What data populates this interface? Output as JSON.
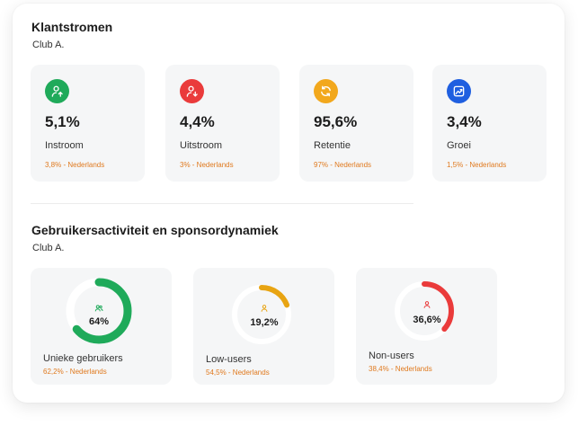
{
  "flows": {
    "title": "Klantstromen",
    "subtitle": "Club A.",
    "cards": [
      {
        "icon": "user-arrow-up-icon",
        "color": "#1faa5a",
        "value": "5,1%",
        "label": "Instroom",
        "benchmark": "3,8% - Nederlands"
      },
      {
        "icon": "user-arrow-down-icon",
        "color": "#ea3b3b",
        "value": "4,4%",
        "label": "Uitstroom",
        "benchmark": "3% - Nederlands"
      },
      {
        "icon": "refresh-icon",
        "color": "#f2a81d",
        "value": "95,6%",
        "label": "Retentie",
        "benchmark": "97% - Nederlands"
      },
      {
        "icon": "growth-chart-icon",
        "color": "#1f5fe0",
        "value": "3,4%",
        "label": "Groei",
        "benchmark": "1,5% - Nederlands"
      }
    ]
  },
  "activity": {
    "title": "Gebruikersactiviteit en sponsordynamiek",
    "subtitle": "Club A.",
    "cards": [
      {
        "icon": "users-icon",
        "color": "#1faa5a",
        "percent": 64,
        "value": "64%",
        "label": "Unieke gebruikers",
        "benchmark": "62,2% - Nederlands"
      },
      {
        "icon": "user-icon",
        "color": "#e8a412",
        "percent": 19.2,
        "value": "19,2%",
        "label": "Low-users",
        "benchmark": "54,5% - Nederlands"
      },
      {
        "icon": "user-icon",
        "color": "#ea3b3b",
        "percent": 36.6,
        "value": "36,6%",
        "label": "Non-users",
        "benchmark": "38,4% - Nederlands"
      }
    ]
  }
}
